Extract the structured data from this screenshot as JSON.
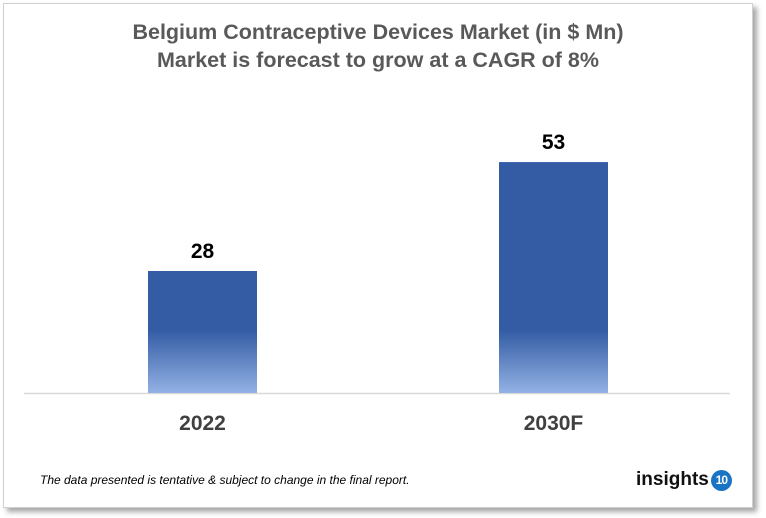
{
  "chart_data": {
    "type": "bar",
    "title": "Belgium Contraceptive Devices Market (in $ Mn)",
    "subtitle": "Market is forecast to grow at a CAGR of 8%",
    "categories": [
      "2022",
      "2030F"
    ],
    "values": [
      28,
      53
    ],
    "data_labels": [
      "28",
      "53"
    ],
    "xlabel": "",
    "ylabel": "",
    "ylim": [
      0,
      60
    ],
    "grid": false,
    "colors": {
      "bar_top": "#335ca4",
      "bar_bottom": "#93b1e4"
    }
  },
  "footer": {
    "note": "The data presented is tentative & subject to change in the final report.",
    "logo_text": "insights",
    "logo_badge": "10"
  }
}
